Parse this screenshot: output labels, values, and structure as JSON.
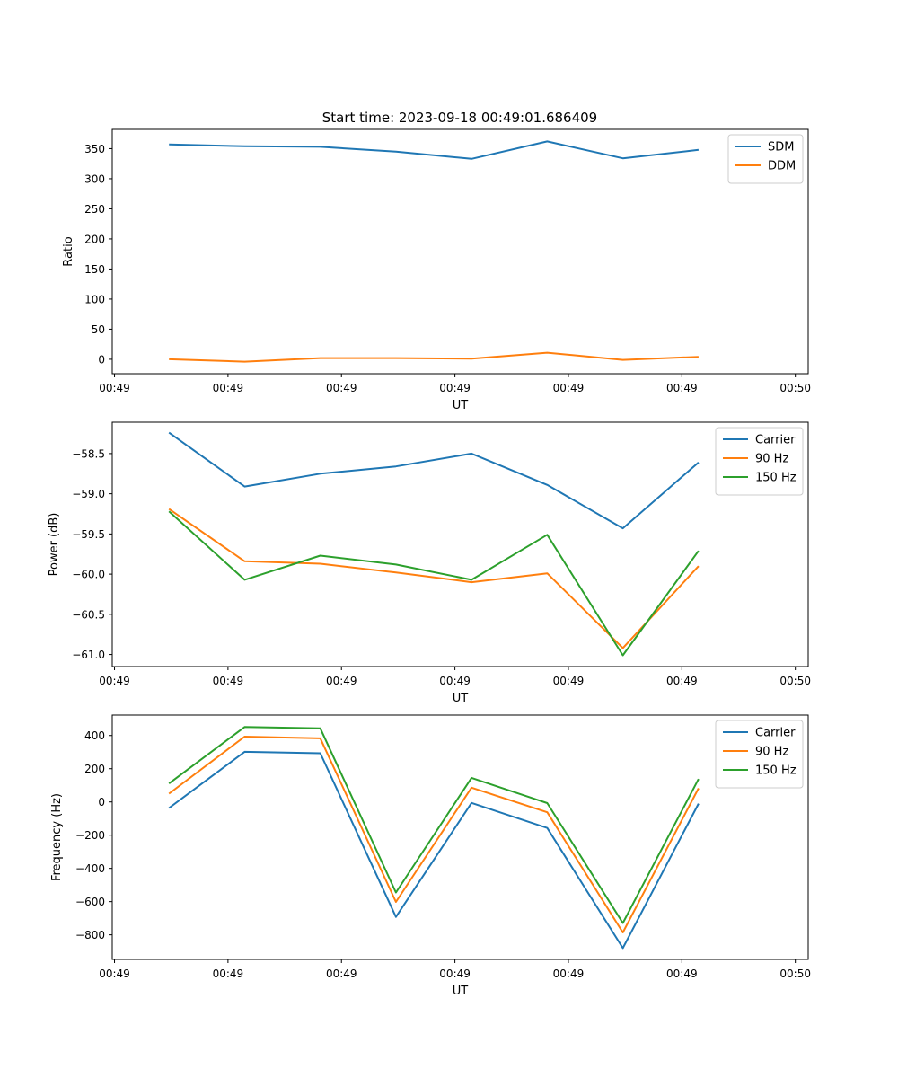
{
  "figure_title": "Start time: 2023-09-18 00:49:01.686409",
  "colors": {
    "blue": "#1f77b4",
    "orange": "#ff7f0e",
    "green": "#2ca02c"
  },
  "chart_data": [
    {
      "type": "line",
      "title": "Start time: 2023-09-18 00:49:01.686409",
      "xlabel": "UT",
      "ylabel": "Ratio",
      "x_tick_labels": [
        "00:49",
        "00:49",
        "00:49",
        "00:49",
        "00:49",
        "00:49",
        "00:50"
      ],
      "xlim": [
        -0.75,
        8.45
      ],
      "ylim": [
        -24,
        382
      ],
      "yticks": [
        0,
        50,
        100,
        150,
        200,
        250,
        300,
        350
      ],
      "y_tick_labels": [
        "0",
        "50",
        "100",
        "150",
        "200",
        "250",
        "300",
        "350"
      ],
      "x": [
        0,
        1,
        2,
        3,
        4,
        5,
        6,
        7
      ],
      "legend_position": "top-right",
      "series": [
        {
          "name": "SDM",
          "color": "#1f77b4",
          "values": [
            357,
            354,
            353,
            345,
            333,
            362,
            334,
            348
          ]
        },
        {
          "name": "DDM",
          "color": "#ff7f0e",
          "values": [
            0,
            -4,
            2,
            2,
            1,
            11,
            -1,
            4
          ]
        }
      ]
    },
    {
      "type": "line",
      "title": "",
      "xlabel": "UT",
      "ylabel": "Power (dB)",
      "x_tick_labels": [
        "00:49",
        "00:49",
        "00:49",
        "00:49",
        "00:49",
        "00:49",
        "00:50"
      ],
      "xlim": [
        -0.75,
        8.45
      ],
      "ylim": [
        -61.15,
        -58.11
      ],
      "yticks": [
        -61.0,
        -60.5,
        -60.0,
        -59.5,
        -59.0,
        -58.5
      ],
      "y_tick_labels": [
        "−61.0",
        "−60.5",
        "−60.0",
        "−59.5",
        "−59.0",
        "−58.5"
      ],
      "x": [
        0,
        1,
        2,
        3,
        4,
        5,
        6,
        7
      ],
      "legend_position": "top-right",
      "series": [
        {
          "name": "Carrier",
          "color": "#1f77b4",
          "values": [
            -58.24,
            -58.91,
            -58.75,
            -58.66,
            -58.5,
            -58.89,
            -59.43,
            -58.61
          ]
        },
        {
          "name": "90 Hz",
          "color": "#ff7f0e",
          "values": [
            -59.19,
            -59.84,
            -59.87,
            -59.98,
            -60.1,
            -59.99,
            -60.92,
            -59.9
          ]
        },
        {
          "name": "150 Hz",
          "color": "#2ca02c",
          "values": [
            -59.22,
            -60.07,
            -59.77,
            -59.88,
            -60.07,
            -59.51,
            -61.01,
            -59.71
          ]
        }
      ]
    },
    {
      "type": "line",
      "title": "",
      "xlabel": "UT",
      "ylabel": "Frequency (Hz)",
      "x_tick_labels": [
        "00:49",
        "00:49",
        "00:49",
        "00:49",
        "00:49",
        "00:49",
        "00:50"
      ],
      "xlim": [
        -0.75,
        8.45
      ],
      "ylim": [
        -948,
        523
      ],
      "yticks": [
        -800,
        -600,
        -400,
        -200,
        0,
        200,
        400
      ],
      "y_tick_labels": [
        "−800",
        "−600",
        "−400",
        "−200",
        "0",
        "200",
        "400"
      ],
      "x": [
        0,
        1,
        2,
        3,
        4,
        5,
        6,
        7
      ],
      "legend_position": "top-right",
      "series": [
        {
          "name": "Carrier",
          "color": "#1f77b4",
          "values": [
            -37,
            302,
            293,
            -692,
            -6,
            -157,
            -880,
            -10
          ]
        },
        {
          "name": "90 Hz",
          "color": "#ff7f0e",
          "values": [
            50,
            393,
            383,
            -602,
            86,
            -62,
            -786,
            82
          ]
        },
        {
          "name": "150 Hz",
          "color": "#2ca02c",
          "values": [
            111,
            451,
            443,
            -545,
            145,
            -7,
            -729,
            138
          ]
        }
      ]
    }
  ]
}
